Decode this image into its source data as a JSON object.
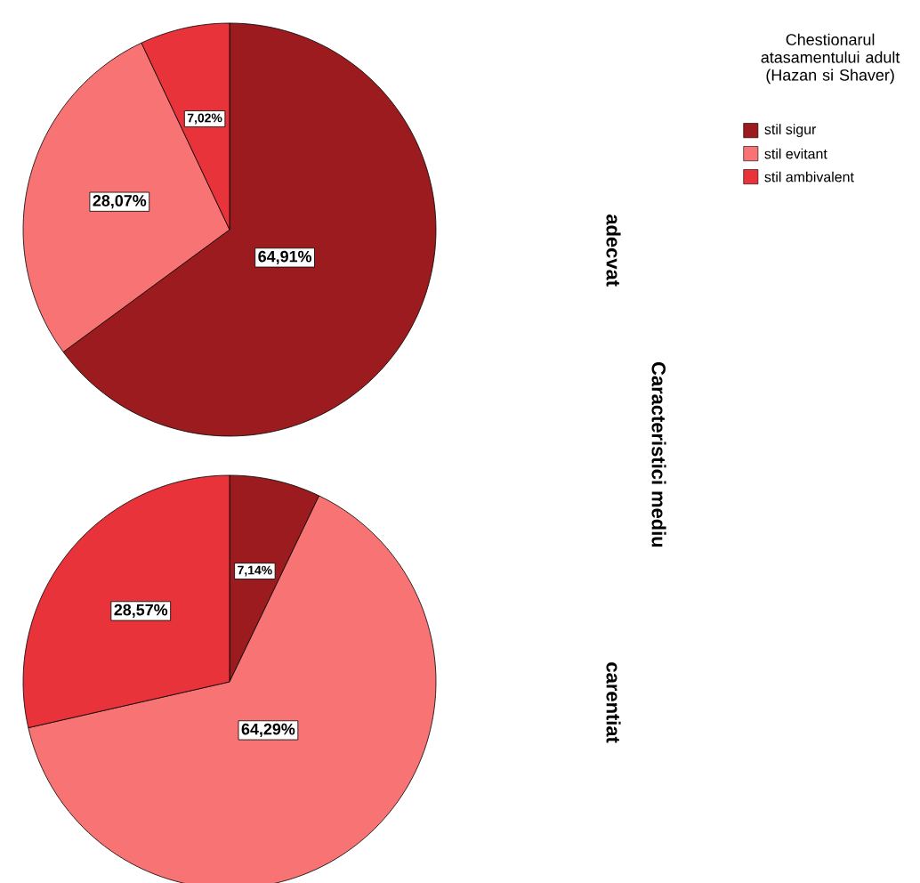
{
  "chart_data": [
    {
      "type": "pie",
      "title": "adecvat",
      "categories": [
        "stil sigur",
        "stil evitant",
        "stil ambivalent"
      ],
      "values": [
        64.91,
        28.07,
        7.02
      ],
      "colors": [
        "#9b1b1e",
        "#f87474",
        "#e8333b"
      ],
      "value_labels": [
        "64,91%",
        "28,07%",
        "7,02%"
      ],
      "legend": "top right",
      "legend_title": "Chestionarul atasamentului adult (Hazan si Shaver)",
      "annotations": [
        "Caracteristici mediu"
      ]
    },
    {
      "type": "pie",
      "title": "carentiat",
      "categories": [
        null,
        null,
        null
      ],
      "values": [
        7.14,
        64.29,
        28.57
      ],
      "colors": [
        "#9b1b1e",
        "#f87474",
        "#e8333b"
      ],
      "value_labels": [
        "7,14%",
        "64,29%",
        "28,57%"
      ],
      "legend": false
    }
  ]
}
